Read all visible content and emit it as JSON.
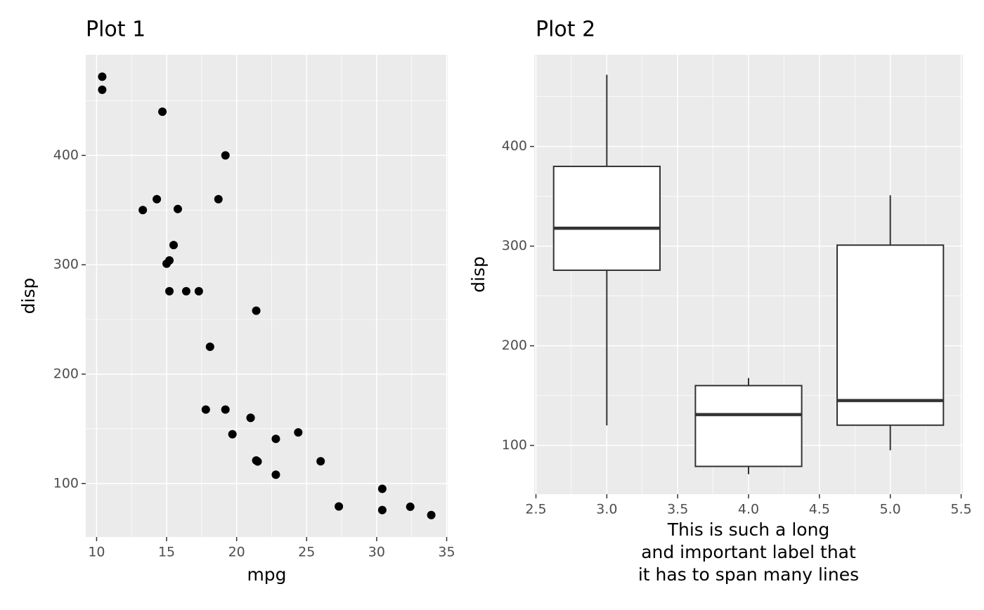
{
  "chart_data": [
    {
      "type": "scatter",
      "title": "Plot 1",
      "xlabel": [
        "mpg"
      ],
      "ylabel": "disp",
      "x": [
        21.0,
        21.0,
        22.8,
        21.4,
        18.7,
        18.1,
        14.3,
        24.4,
        22.8,
        19.2,
        17.8,
        16.4,
        17.3,
        15.2,
        10.4,
        10.4,
        14.7,
        32.4,
        30.4,
        33.9,
        21.5,
        15.5,
        15.2,
        13.3,
        19.2,
        27.3,
        26.0,
        30.4,
        15.8,
        19.7,
        15.0,
        21.4
      ],
      "values": [
        160,
        160,
        108,
        258,
        360,
        225,
        360,
        146.7,
        140.8,
        167.6,
        167.6,
        275.8,
        275.8,
        275.8,
        472,
        460,
        440,
        78.7,
        75.7,
        71.1,
        120.1,
        318,
        304,
        350,
        400,
        79,
        120.3,
        95.1,
        351,
        145,
        301,
        121
      ],
      "color": "#000000",
      "xlim": [
        9.225,
        35.075
      ],
      "ylim": [
        51.055,
        492.045
      ],
      "xticks": [
        10,
        15,
        20,
        25,
        30,
        35
      ],
      "yticks": [
        100,
        200,
        300,
        400
      ],
      "grid": true
    },
    {
      "type": "boxplot",
      "title": "Plot 2",
      "xlabel": [
        "This is such a long",
        "and important label that",
        "it has to span many lines"
      ],
      "ylabel": "disp",
      "boxes": [
        {
          "x": 3,
          "min": 120.1,
          "q1": 275.8,
          "median": 318,
          "q3": 380,
          "max": 472
        },
        {
          "x": 4,
          "min": 71.1,
          "q1": 78.925,
          "median": 130.9,
          "q3": 160,
          "max": 167.6
        },
        {
          "x": 5,
          "min": 95.1,
          "q1": 120.3,
          "median": 145,
          "q3": 301,
          "max": 351
        }
      ],
      "box_width": 0.75,
      "color": "#ffffff",
      "xlim": [
        2.4875,
        5.5125
      ],
      "ylim": [
        51.055,
        492.045
      ],
      "xticks": [
        2.5,
        {
          "value": 3,
          "label": "3.0"
        },
        3.5,
        {
          "value": 4,
          "label": "4.0"
        },
        4.5,
        {
          "value": 5,
          "label": "5.0"
        },
        5.5
      ],
      "yticks": [
        100,
        200,
        300,
        400
      ],
      "grid": true
    }
  ]
}
